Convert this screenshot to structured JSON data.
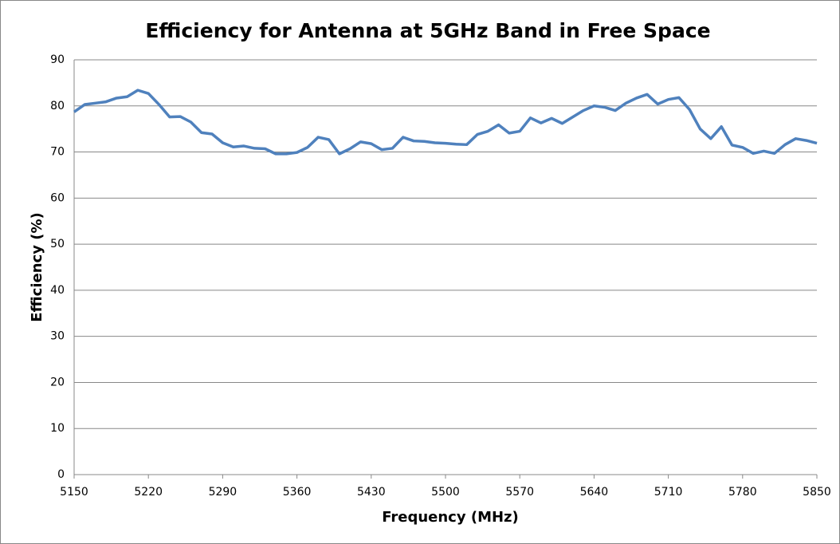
{
  "chart_data": {
    "type": "line",
    "title": "Efficiency for Antenna at 5GHz Band in Free Space",
    "x_label": "Frequency  (MHz)",
    "y_label": "Efficiency (%)",
    "xlim": [
      5150,
      5850
    ],
    "xticks": [
      5150,
      5220,
      5290,
      5360,
      5430,
      5500,
      5570,
      5640,
      5710,
      5780,
      5850
    ],
    "ylim": [
      0,
      90
    ],
    "yticks": [
      0,
      10,
      20,
      30,
      40,
      50,
      60,
      70,
      80,
      90
    ],
    "grid": true,
    "x": [
      5150,
      5160,
      5170,
      5180,
      5190,
      5200,
      5210,
      5220,
      5230,
      5240,
      5250,
      5260,
      5270,
      5280,
      5290,
      5300,
      5310,
      5320,
      5330,
      5340,
      5350,
      5360,
      5370,
      5380,
      5390,
      5400,
      5410,
      5420,
      5430,
      5440,
      5450,
      5460,
      5470,
      5480,
      5490,
      5500,
      5510,
      5520,
      5530,
      5540,
      5550,
      5560,
      5570,
      5580,
      5590,
      5600,
      5610,
      5620,
      5630,
      5640,
      5650,
      5660,
      5670,
      5680,
      5690,
      5700,
      5710,
      5720,
      5730,
      5740,
      5750,
      5760,
      5770,
      5780,
      5790,
      5800,
      5810,
      5820,
      5830,
      5840,
      5850
    ],
    "series": [
      {
        "color": "#4f81bd",
        "values": [
          78.7,
          80.3,
          80.6,
          80.9,
          81.7,
          82.0,
          83.4,
          82.7,
          80.3,
          77.6,
          77.7,
          76.5,
          74.2,
          73.9,
          72.0,
          71.1,
          71.3,
          70.8,
          70.7,
          69.6,
          69.6,
          69.9,
          71.0,
          73.2,
          72.7,
          69.6,
          70.7,
          72.2,
          71.8,
          70.5,
          70.8,
          73.2,
          72.4,
          72.3,
          72.0,
          71.9,
          71.7,
          71.6,
          73.8,
          74.5,
          75.9,
          74.1,
          74.5,
          77.4,
          76.3,
          77.3,
          76.2,
          77.6,
          79.0,
          80.0,
          79.7,
          79.0,
          80.6,
          81.7,
          82.5,
          80.4,
          81.4,
          81.8,
          79.2,
          75.0,
          72.9,
          75.5,
          71.5,
          71.0,
          69.7,
          70.2,
          69.7,
          71.6,
          72.9,
          72.5,
          71.9
        ]
      }
    ]
  }
}
